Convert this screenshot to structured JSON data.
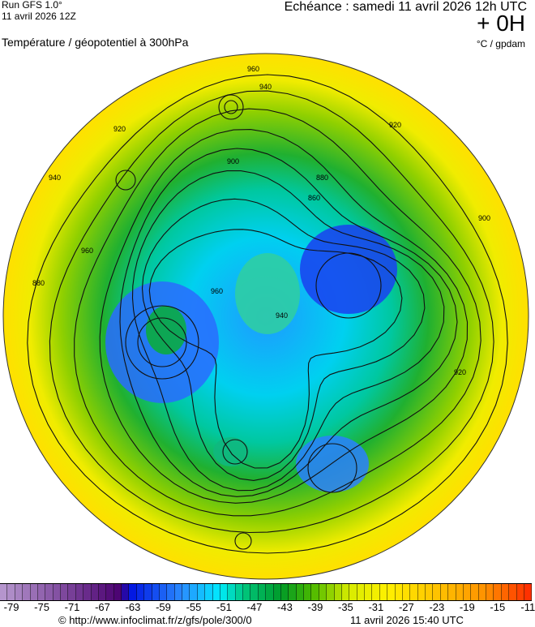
{
  "header": {
    "run": "Run GFS 1.0°",
    "run_date": "11 avril 2026 12Z",
    "title": "Température / géopotentiel à 300hPa",
    "echeance": "Echéance : samedi 11 avril 2026 12h UTC",
    "lead": "+ 0H",
    "units": "°C / gpdam"
  },
  "map": {
    "projection": "polar stereographic (north pole)",
    "contour_labels": [
      "960",
      "940",
      "920",
      "900",
      "880",
      "860",
      "960",
      "940",
      "920",
      "900",
      "880",
      "960",
      "940",
      "920"
    ]
  },
  "colorbar": {
    "min": -80,
    "max": -10,
    "tick_labels": [
      "-79",
      "-75",
      "-71",
      "-67",
      "-63",
      "-59",
      "-55",
      "-51",
      "-47",
      "-43",
      "-39",
      "-35",
      "-31",
      "-27",
      "-23",
      "-19",
      "-15",
      "-11"
    ],
    "color_stops": [
      {
        "v": -80,
        "c": "#b89ad0"
      },
      {
        "v": -64,
        "c": "#4a0070"
      },
      {
        "v": -63,
        "c": "#0010e0"
      },
      {
        "v": -56,
        "c": "#2a8cff"
      },
      {
        "v": -51,
        "c": "#00ecff"
      },
      {
        "v": -48,
        "c": "#00c880"
      },
      {
        "v": -43,
        "c": "#009a28"
      },
      {
        "v": -39,
        "c": "#48b800"
      },
      {
        "v": -34,
        "c": "#d8ec00"
      },
      {
        "v": -29,
        "c": "#fff000"
      },
      {
        "v": -22,
        "c": "#ffc000"
      },
      {
        "v": -16,
        "c": "#ff9000"
      },
      {
        "v": -10,
        "c": "#ff2800"
      }
    ]
  },
  "footer": {
    "copyright": "© http://www.infoclimat.fr/z/gfs/pole/300/0",
    "generated": "11 avril 2026 15:40 UTC"
  }
}
